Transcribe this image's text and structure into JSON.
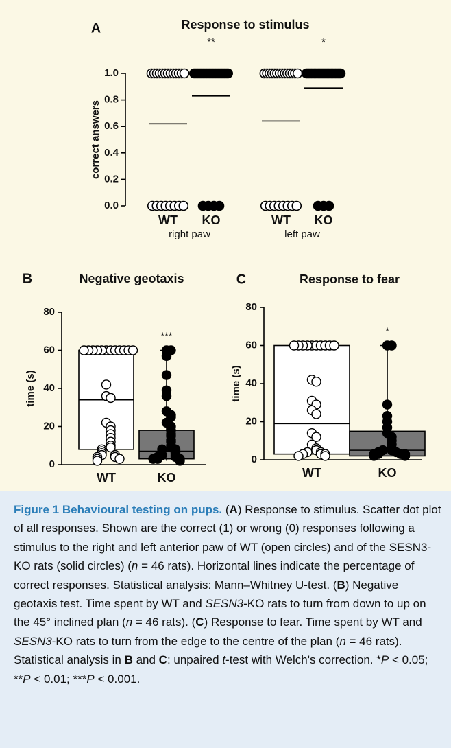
{
  "chart_data": [
    {
      "type": "dot",
      "panel": "A",
      "title": "Response to stimulus",
      "ylabel": "correct answers",
      "ylim": [
        0,
        1
      ],
      "yticks": [
        {
          "value": 0,
          "label": "0.0"
        },
        {
          "value": 0.2,
          "label": "0.2"
        },
        {
          "value": 0.4,
          "label": "0.4"
        },
        {
          "value": 0.6,
          "label": "0.6"
        },
        {
          "value": 0.8,
          "label": "0.8"
        },
        {
          "value": 1,
          "label": "1.0"
        }
      ],
      "groups": [
        "right paw",
        "left paw"
      ],
      "series": [
        {
          "name": "WT",
          "fill": "#ffffff",
          "mean": 0.62,
          "values": [
            1,
            1,
            1,
            1,
            1,
            1,
            1,
            1,
            1,
            1,
            1,
            1,
            1,
            0,
            0,
            0,
            0,
            0,
            0,
            0,
            0
          ]
        },
        {
          "name": "KO",
          "fill": "#000000",
          "mean": 0.83,
          "annotation": "**",
          "values": [
            1,
            1,
            1,
            1,
            1,
            1,
            1,
            1,
            1,
            1,
            1,
            1,
            1,
            1,
            1,
            1,
            1,
            1,
            1,
            1,
            0,
            0,
            0,
            0
          ]
        },
        {
          "name": "WT",
          "fill": "#ffffff",
          "mean": 0.64,
          "values": [
            1,
            1,
            1,
            1,
            1,
            1,
            1,
            1,
            1,
            1,
            1,
            1,
            1,
            1,
            0,
            0,
            0,
            0,
            0,
            0,
            0,
            0
          ]
        },
        {
          "name": "KO",
          "fill": "#000000",
          "mean": 0.89,
          "annotation": "*",
          "values": [
            1,
            1,
            1,
            1,
            1,
            1,
            1,
            1,
            1,
            1,
            1,
            1,
            1,
            1,
            1,
            1,
            1,
            1,
            1,
            1,
            1,
            1,
            1,
            1,
            1,
            0,
            0,
            0
          ]
        }
      ]
    },
    {
      "type": "box",
      "panel": "B",
      "title": "Negative geotaxis",
      "ylabel": "time (s)",
      "ylim": [
        0,
        80
      ],
      "yticks": [
        0,
        20,
        40,
        60,
        80
      ],
      "series": [
        {
          "name": "WT",
          "box_fill": "#ffffff",
          "point_fill": "#ffffff",
          "q1": 8,
          "q3": 60,
          "center": 34,
          "min": 8,
          "max": 60,
          "values": [
            60,
            60,
            60,
            60,
            60,
            60,
            60,
            60,
            60,
            60,
            60,
            60,
            42,
            36,
            35,
            22,
            20,
            18,
            16,
            14,
            12,
            10,
            9,
            8,
            7,
            6,
            5,
            5,
            4,
            4,
            3,
            3,
            2
          ]
        },
        {
          "name": "KO",
          "box_fill": "#777777",
          "point_fill": "#000000",
          "q1": 3,
          "q3": 18,
          "center": 7,
          "min": 2,
          "max": 60,
          "annotation": "***",
          "values": [
            60,
            60,
            57,
            47,
            39,
            36,
            28,
            26,
            25,
            22,
            20,
            18,
            16,
            15,
            13,
            12,
            10,
            9,
            8,
            8,
            7,
            6,
            5,
            5,
            4,
            4,
            3,
            3,
            3,
            2
          ]
        }
      ]
    },
    {
      "type": "box",
      "panel": "C",
      "title": "Response to fear",
      "ylabel": "time (s)",
      "ylim": [
        0,
        80
      ],
      "yticks": [
        0,
        20,
        40,
        60,
        80
      ],
      "series": [
        {
          "name": "WT",
          "box_fill": "#ffffff",
          "point_fill": "#ffffff",
          "q1": 3,
          "q3": 60,
          "center": 19,
          "min": 3,
          "max": 60,
          "values": [
            60,
            60,
            60,
            60,
            60,
            60,
            60,
            60,
            60,
            60,
            42,
            41,
            31,
            29,
            26,
            24,
            14,
            12,
            8,
            6,
            5,
            4,
            4,
            3,
            3,
            3,
            2,
            2
          ]
        },
        {
          "name": "KO",
          "box_fill": "#777777",
          "point_fill": "#000000",
          "q1": 2,
          "q3": 15,
          "center": 5,
          "min": 2,
          "max": 60,
          "annotation": "*",
          "values": [
            60,
            60,
            29,
            23,
            20,
            17,
            14,
            12,
            10,
            8,
            6,
            5,
            5,
            4,
            4,
            3,
            3,
            3,
            3,
            2,
            2
          ]
        }
      ]
    }
  ],
  "caption": {
    "heading": "Figure 1 Behavioural testing on pups.",
    "segments": [
      {
        "text": " (",
        "style": "normal"
      },
      {
        "text": "A",
        "style": "bold"
      },
      {
        "text": ") Response to stimulus. Scatter dot plot of all responses. Shown are the correct (1) or wrong (0) responses following a stimulus to the right and left anterior paw of WT (open circles) and of the SESN3-KO rats (solid circles) (",
        "style": "normal"
      },
      {
        "text": "n",
        "style": "italic"
      },
      {
        "text": " = 46 rats). Horizontal lines indicate the percentage of correct responses. Statistical analysis: Mann–Whitney U-test. (",
        "style": "normal"
      },
      {
        "text": "B",
        "style": "bold"
      },
      {
        "text": ") Negative geotaxis test. Time spent by WT and ",
        "style": "normal"
      },
      {
        "text": "SESN3",
        "style": "italic"
      },
      {
        "text": "-KO rats to turn from down to up on the 45° inclined plan (",
        "style": "normal"
      },
      {
        "text": "n",
        "style": "italic"
      },
      {
        "text": " = 46 rats). (",
        "style": "normal"
      },
      {
        "text": "C",
        "style": "bold"
      },
      {
        "text": ") Response to fear. Time spent by WT and ",
        "style": "normal"
      },
      {
        "text": "SESN3",
        "style": "italic"
      },
      {
        "text": "-KO rats to turn from the edge to the centre of the plan (",
        "style": "normal"
      },
      {
        "text": "n",
        "style": "italic"
      },
      {
        "text": " = 46 rats). Statistical analysis in ",
        "style": "normal"
      },
      {
        "text": "B",
        "style": "bold"
      },
      {
        "text": " and ",
        "style": "normal"
      },
      {
        "text": "C",
        "style": "bold"
      },
      {
        "text": ": unpaired ",
        "style": "normal"
      },
      {
        "text": "t",
        "style": "italic"
      },
      {
        "text": "-test with Welch's correction. *",
        "style": "normal"
      },
      {
        "text": "P",
        "style": "italic"
      },
      {
        "text": " < 0.05; **",
        "style": "normal"
      },
      {
        "text": "P",
        "style": "italic"
      },
      {
        "text": " < 0.01; ***",
        "style": "normal"
      },
      {
        "text": "P",
        "style": "italic"
      },
      {
        "text": " < 0.001.",
        "style": "normal"
      }
    ]
  }
}
